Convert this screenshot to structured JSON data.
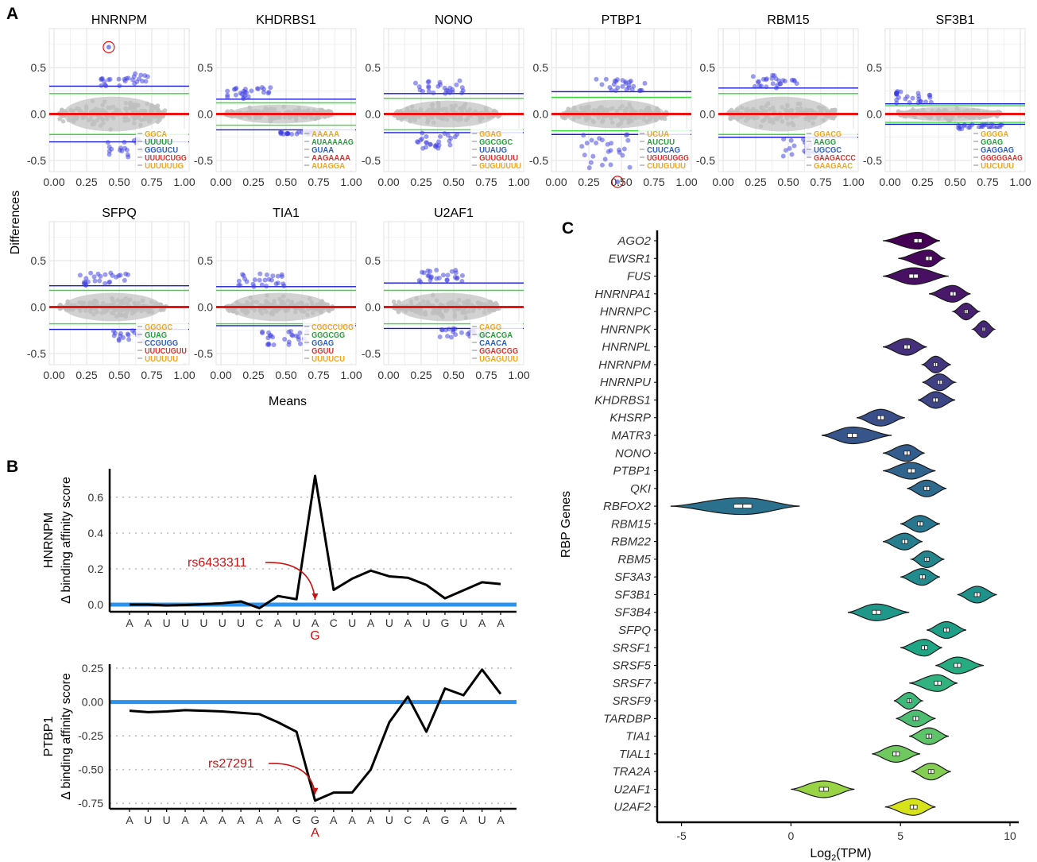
{
  "panel_labels": {
    "a": "A",
    "b": "B",
    "c": "C"
  },
  "colors": {
    "blue_line": "#1a1adb",
    "green_line": "#33dd33",
    "red_line": "#ee1111",
    "cloud": "#bfbfbf",
    "points": "#3a3ae0",
    "affinity_zero": "#2b93ef",
    "annotation": "#cc1111"
  },
  "chart_data": [
    {
      "type": "scatter",
      "facet_grid": true,
      "ylabel": "Differences",
      "xlabel": "Means",
      "xlim": [
        0,
        1
      ],
      "ylim": [
        -0.62,
        0.92
      ],
      "x_ticks": [
        "0.00",
        "0.25",
        "0.50",
        "0.75",
        "1.00"
      ],
      "y_ticks": [
        "-0.5",
        "0.0",
        "0.5"
      ],
      "facets": [
        {
          "name": "HNRNPM",
          "blue": [
            0.3,
            -0.3
          ],
          "green": [
            0.22,
            -0.22
          ],
          "out_top": [
            0.07,
            0.27,
            0.55
          ],
          "out_bot": [
            -0.47,
            -0.26,
            0.6
          ],
          "circled": {
            "x": 0.42,
            "y": 0.72
          },
          "motifs": [
            "GGCA",
            "UUUUU",
            "GGGUCU",
            "UUUUCUGG",
            "UUUUUUG"
          ]
        },
        {
          "name": "KHDRBS1",
          "blue": [
            0.16,
            -0.17
          ],
          "green": [
            0.12,
            -0.12
          ],
          "out_top": [
            0.07,
            0.17,
            0.2
          ],
          "out_bot": [
            -0.22,
            -0.19,
            0.59
          ],
          "motifs": [
            "AAAAA",
            "AUAAAAAG",
            "GUAA",
            "AAGAAAA",
            "AUAGGA"
          ]
        },
        {
          "name": "NONO",
          "blue": [
            0.22,
            -0.2
          ],
          "green": [
            0.17,
            -0.17
          ],
          "out_top": [
            0.07,
            0.22,
            0.39
          ],
          "out_bot": [
            -0.37,
            -0.2,
            0.4
          ],
          "motifs": [
            "GGAG",
            "GGCGGC",
            "UUAUG",
            "GUUGUUU",
            "GUGUUUUU"
          ]
        },
        {
          "name": "PTBP1",
          "blue": [
            0.24,
            -0.22
          ],
          "green": [
            0.18,
            -0.18
          ],
          "out_top": [
            0.06,
            0.24,
            0.49
          ],
          "out_bot": [
            -0.6,
            -0.22,
            0.38
          ],
          "circled": {
            "x": 0.47,
            "y": -0.73
          },
          "motifs": [
            "UCUA",
            "AUCUU",
            "CUUCAG",
            "UGUGUGGG",
            "CUUGUUU"
          ]
        },
        {
          "name": "RBM15",
          "blue": [
            0.28,
            -0.25
          ],
          "green": [
            0.22,
            -0.22
          ],
          "out_top": [
            0.07,
            0.28,
            0.39
          ],
          "out_bot": [
            -0.46,
            -0.25,
            0.63
          ],
          "motifs": [
            "GGACG",
            "AAGG",
            "UGCGC",
            "GAAGACCC",
            "GAAGAAC"
          ]
        },
        {
          "name": "SF3B1",
          "blue": [
            0.11,
            -0.11
          ],
          "green": [
            0.09,
            -0.09
          ],
          "out_top": [
            0.2,
            0.11,
            0.15
          ],
          "out_bot": [
            -0.16,
            -0.11,
            0.69
          ],
          "motifs": [
            "GGGGA",
            "GGAG",
            "GAGGAG",
            "GGGGGAAG",
            "UUCUUU"
          ]
        },
        {
          "name": "SFPQ",
          "blue": [
            0.23,
            -0.24
          ],
          "green": [
            0.18,
            -0.18
          ],
          "out_top": [
            0.07,
            0.23,
            0.38
          ],
          "out_bot": [
            -0.37,
            -0.24,
            0.64
          ],
          "motifs": [
            "GGGGC",
            "GUAG",
            "CCGUGG",
            "UUUCUGUU",
            "UUUUUU"
          ]
        },
        {
          "name": "TIA1",
          "blue": [
            0.22,
            -0.2
          ],
          "green": [
            0.18,
            -0.18
          ],
          "out_top": [
            0.25,
            0.22,
            0.3
          ],
          "out_bot": [
            -0.41,
            -0.2,
            0.5
          ],
          "motifs": [
            "CGGCCUGG",
            "GGGCGG",
            "GGAG",
            "GGUU",
            "UUUUCU"
          ]
        },
        {
          "name": "U2AF1",
          "blue": [
            0.26,
            -0.23
          ],
          "green": [
            0.18,
            -0.18
          ],
          "out_top": [
            0.08,
            0.26,
            0.38
          ],
          "out_bot": [
            -0.33,
            -0.23,
            0.57
          ],
          "motifs": [
            "CAGG",
            "GCACGA",
            "CAACA",
            "GGAGCGG",
            "UGAGUUU"
          ]
        }
      ]
    },
    {
      "type": "line",
      "ylabel": "HNRNPM\nΔ binding affinity score",
      "ylabel_lines": [
        "HNRNPM",
        "Δ binding affinity score"
      ],
      "categories": [
        "A",
        "A",
        "U",
        "U",
        "U",
        "U",
        "U",
        "C",
        "A",
        "U",
        "A",
        "C",
        "U",
        "A",
        "U",
        "A",
        "U",
        "G",
        "U",
        "A",
        "A"
      ],
      "values": [
        0.0,
        0.0,
        -0.005,
        -0.002,
        0.002,
        0.008,
        0.018,
        -0.02,
        0.048,
        0.03,
        0.72,
        0.082,
        0.145,
        0.19,
        0.158,
        0.15,
        0.11,
        0.035,
        0.08,
        0.125,
        0.115
      ],
      "y_ticks": [
        "0.0",
        "0.2",
        "0.4",
        "0.6"
      ],
      "ylim": [
        -0.04,
        0.76
      ],
      "snp": {
        "label": "rs6433311",
        "index": 10,
        "alt": "G"
      }
    },
    {
      "type": "line",
      "ylabel": "PTBP1\nΔ binding affinity score",
      "ylabel_lines": [
        "PTBP1",
        "Δ binding affinity score"
      ],
      "categories": [
        "A",
        "U",
        "U",
        "A",
        "A",
        "A",
        "A",
        "A",
        "A",
        "G",
        "G",
        "A",
        "A",
        "A",
        "U",
        "C",
        "A",
        "G",
        "A",
        "U",
        "A"
      ],
      "values": [
        -0.065,
        -0.075,
        -0.07,
        -0.06,
        -0.065,
        -0.07,
        -0.08,
        -0.09,
        -0.15,
        -0.22,
        -0.73,
        -0.67,
        -0.67,
        -0.5,
        -0.15,
        0.04,
        -0.22,
        0.1,
        0.05,
        0.24,
        0.06
      ],
      "y_ticks": [
        "-0.75",
        "-0.50",
        "-0.25",
        "0.00",
        "0.25"
      ],
      "ylim": [
        -0.79,
        0.28
      ],
      "snp": {
        "label": "rs27291",
        "index": 10,
        "alt": "A"
      }
    },
    {
      "type": "violin",
      "ylabel": "RBP Genes",
      "xlabel": "Log2(TPM)",
      "xlabel_main": "Log",
      "xlabel_sub": "2",
      "xlabel_tail": "(TPM)",
      "xlim": [
        -6,
        10
      ],
      "x_ticks": [
        "-5",
        "0",
        "5",
        "10"
      ],
      "categories": [
        "AGO2",
        "EWSR1",
        "FUS",
        "HNRNPA1",
        "HNRNPC",
        "HNRNPK",
        "HNRNPL",
        "HNRNPM",
        "HNRNPU",
        "KHDRBS1",
        "KHSRP",
        "MATR3",
        "NONO",
        "PTBP1",
        "QKI",
        "RBFOX2",
        "RBM15",
        "RBM22",
        "RBM5",
        "SF3A3",
        "SF3B1",
        "SF3B4",
        "SFPQ",
        "SRSF1",
        "SRSF5",
        "SRSF7",
        "SRSF9",
        "TARDBP",
        "TIA1",
        "TIAL1",
        "TRA2A",
        "U2AF1",
        "U2AF2"
      ],
      "medians": [
        5.8,
        6.3,
        5.6,
        7.4,
        8.0,
        8.8,
        5.3,
        6.6,
        6.8,
        6.6,
        4.1,
        2.8,
        5.3,
        5.5,
        6.2,
        -2.2,
        5.9,
        5.2,
        6.2,
        6.0,
        8.5,
        3.9,
        7.1,
        6.1,
        7.6,
        6.7,
        5.4,
        5.7,
        6.3,
        4.8,
        6.4,
        1.5,
        5.6
      ],
      "ranges": [
        [
          4.2,
          6.8
        ],
        [
          4.9,
          7.0
        ],
        [
          4.2,
          7.2
        ],
        [
          6.3,
          8.2
        ],
        [
          7.4,
          8.6
        ],
        [
          8.3,
          9.3
        ],
        [
          4.2,
          6.2
        ],
        [
          6.0,
          7.3
        ],
        [
          6.0,
          7.5
        ],
        [
          5.8,
          7.5
        ],
        [
          3.0,
          5.2
        ],
        [
          1.4,
          4.6
        ],
        [
          4.2,
          6.1
        ],
        [
          4.2,
          6.6
        ],
        [
          5.3,
          7.1
        ],
        [
          -5.5,
          0.4
        ],
        [
          5.0,
          6.8
        ],
        [
          4.2,
          6.0
        ],
        [
          5.5,
          7.0
        ],
        [
          5.0,
          6.8
        ],
        [
          7.6,
          9.4
        ],
        [
          2.6,
          5.4
        ],
        [
          6.2,
          8.0
        ],
        [
          5.0,
          6.9
        ],
        [
          6.6,
          8.8
        ],
        [
          5.4,
          7.6
        ],
        [
          4.7,
          6.0
        ],
        [
          4.8,
          6.6
        ],
        [
          5.4,
          7.2
        ],
        [
          3.7,
          5.9
        ],
        [
          5.5,
          7.3
        ],
        [
          0.0,
          2.9
        ],
        [
          4.3,
          6.6
        ]
      ],
      "colors": [
        "#440154",
        "#45085b",
        "#471063",
        "#48186a",
        "#472070",
        "#462876",
        "#45307b",
        "#433880",
        "#404084",
        "#3d4787",
        "#3a4f8a",
        "#36568b",
        "#335d8c",
        "#30648d",
        "#2d6a8e",
        "#2b718e",
        "#28778e",
        "#267e8e",
        "#24858d",
        "#228b8d",
        "#20928c",
        "#1f988a",
        "#1f9f88",
        "#21a685",
        "#27ac82",
        "#31b27e",
        "#3eb879",
        "#4dbe71",
        "#5ec469",
        "#70c95f",
        "#85ce54",
        "#99d346",
        "#d6e21a"
      ]
    }
  ]
}
